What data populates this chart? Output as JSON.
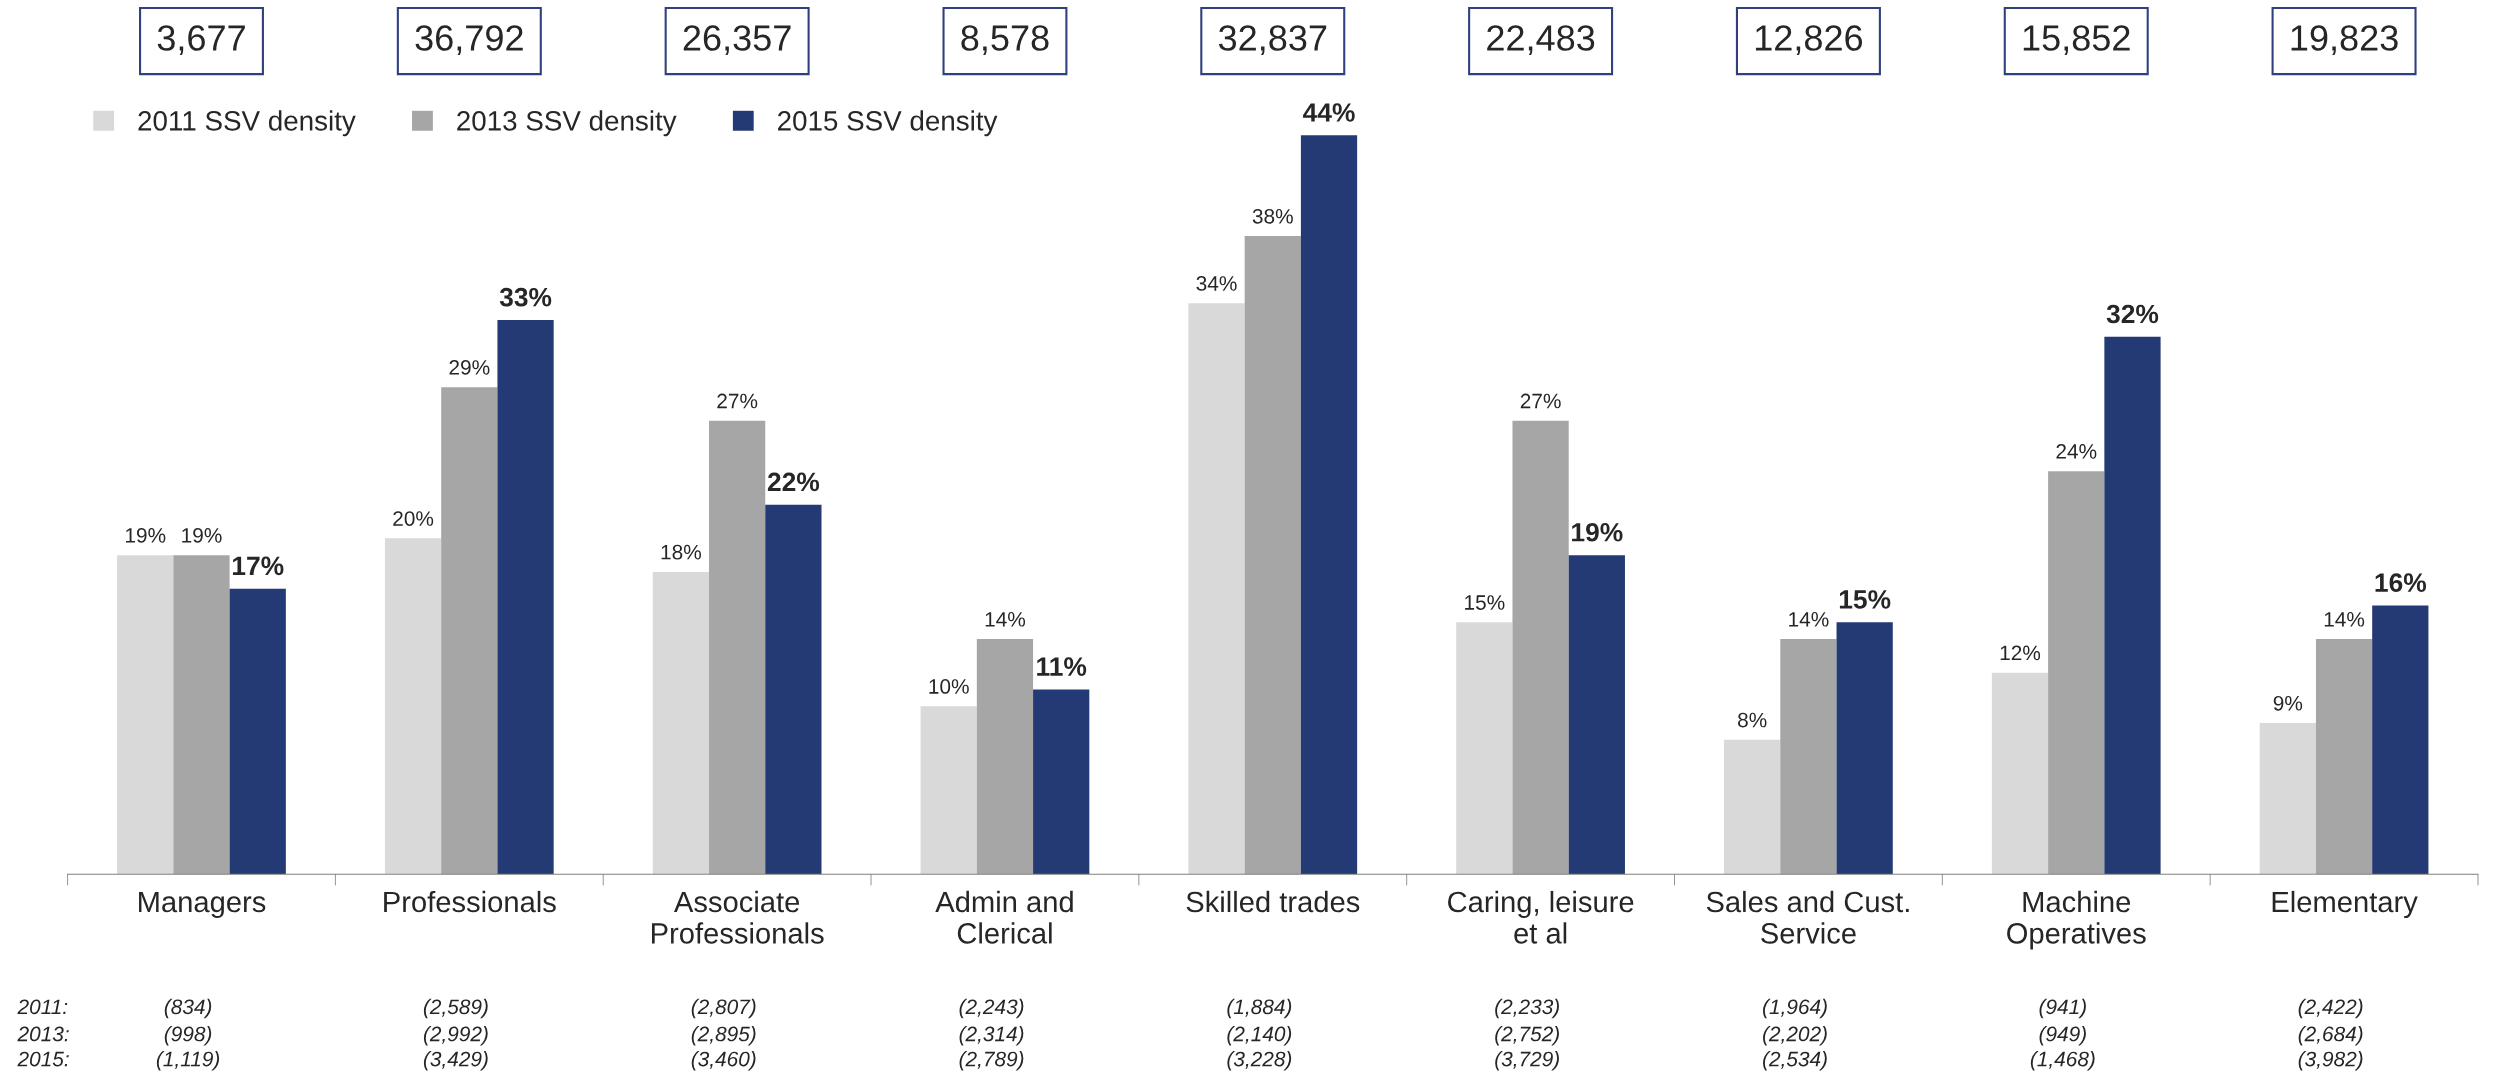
{
  "chart_data": {
    "type": "bar",
    "categories": [
      "Managers",
      "Professionals",
      "Associate\nProfessionals",
      "Admin and\nClerical",
      "Skilled trades",
      "Caring, leisure\net al",
      "Sales and Cust.\nService",
      "Machine\nOperatives",
      "Elementary"
    ],
    "series": [
      {
        "name": "2011 SSV density",
        "color": "#d9d9d9",
        "values": [
          19,
          20,
          18,
          10,
          34,
          15,
          8,
          12,
          9
        ],
        "value_labels": [
          "19%",
          "20%",
          "18%",
          "10%",
          "34%",
          "15%",
          "8%",
          "12%",
          "9%"
        ]
      },
      {
        "name": "2013 SSV density",
        "color": "#a6a6a6",
        "values": [
          19,
          29,
          27,
          14,
          38,
          27,
          14,
          24,
          14
        ],
        "value_labels": [
          "19%",
          "29%",
          "27%",
          "14%",
          "38%",
          "27%",
          "14%",
          "24%",
          "14%"
        ]
      },
      {
        "name": "2015 SSV density",
        "color": "#233a74",
        "values": [
          17,
          33,
          22,
          11,
          44,
          19,
          15,
          32,
          16
        ],
        "value_labels": [
          "17%",
          "33%",
          "22%",
          "11%",
          "44%",
          "19%",
          "15%",
          "32%",
          "16%"
        ]
      }
    ],
    "legend": "top left",
    "grid": false,
    "annotations": [
      "3,677",
      "36,792",
      "26,357",
      "8,578",
      "32,837",
      "22,483",
      "12,826",
      "15,852",
      "19,823",
      "2011:",
      "(834)",
      "(2,589)",
      "(2,807)",
      "(2,243)",
      "(1,884)",
      "(2,233)",
      "(1,964)",
      "(941)",
      "(2,422)",
      "2013:",
      "(998)",
      "(2,992)",
      "(2,895)",
      "(2,314)",
      "(2,140)",
      "(2,752)",
      "(2,202)",
      "(949)",
      "(2,684)",
      "2015:",
      "(1,119)",
      "(3,429)",
      "(3,460)",
      "(2,789)",
      "(3,228)",
      "(3,729)",
      "(2,534)",
      "(1,468)",
      "(3,982)"
    ]
  }
}
